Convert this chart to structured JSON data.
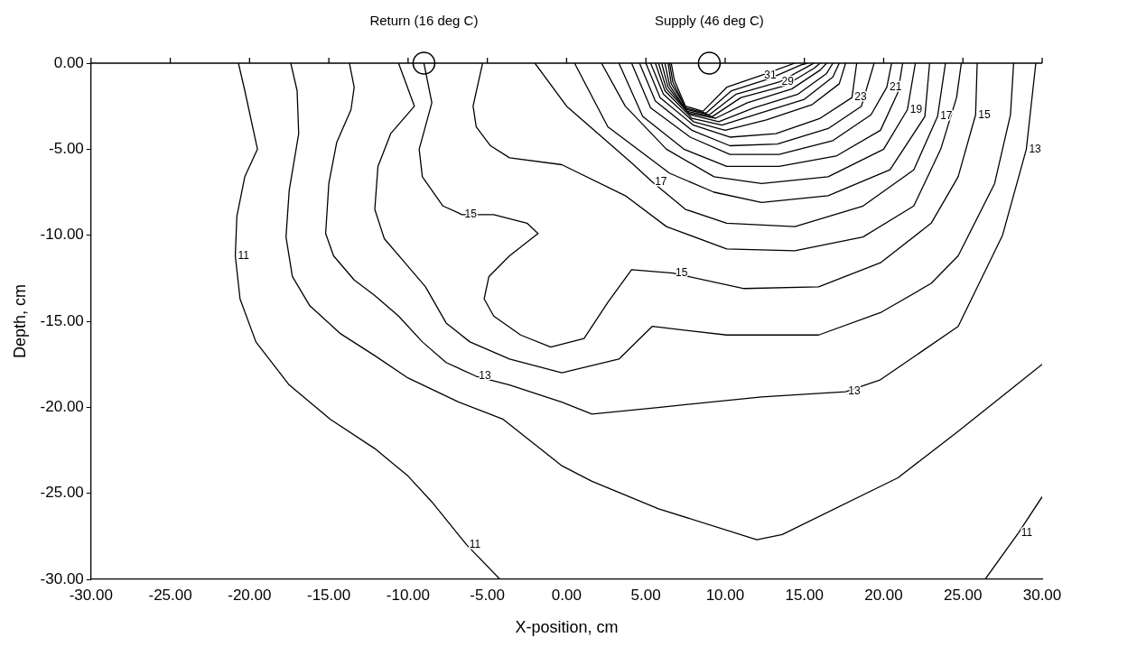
{
  "chart_data": {
    "type": "line",
    "xlabel": "X-position, cm",
    "ylabel": "Depth, cm",
    "xlim": [
      -30,
      30
    ],
    "ylim": [
      -30,
      0
    ],
    "xticks": [
      {
        "value": -30,
        "label": "-30.00"
      },
      {
        "value": -25,
        "label": "-25.00"
      },
      {
        "value": -20,
        "label": "-20.00"
      },
      {
        "value": -15,
        "label": "-15.00"
      },
      {
        "value": -10,
        "label": "-10.00"
      },
      {
        "value": -5,
        "label": "-5.00"
      },
      {
        "value": 0,
        "label": "0.00"
      },
      {
        "value": 5,
        "label": "5.00"
      },
      {
        "value": 10,
        "label": "10.00"
      },
      {
        "value": 15,
        "label": "15.00"
      },
      {
        "value": 20,
        "label": "20.00"
      },
      {
        "value": 25,
        "label": "25.00"
      },
      {
        "value": 30,
        "label": "30.00"
      }
    ],
    "yticks": [
      {
        "value": 0,
        "label": "0.00"
      },
      {
        "value": -5,
        "label": "-5.00"
      },
      {
        "value": -10,
        "label": "-10.00"
      },
      {
        "value": -15,
        "label": "-15.00"
      },
      {
        "value": -20,
        "label": "-20.00"
      },
      {
        "value": -25,
        "label": "-25.00"
      },
      {
        "value": -30,
        "label": "-30.00"
      }
    ],
    "grid": false,
    "legend": false,
    "marker": "none",
    "series": [
      {
        "color": "#000000",
        "x": [
          -20.7,
          -20.3,
          -19.5,
          -20.3,
          -20.8,
          -20.9,
          -20.6,
          -19.6,
          -17.5,
          -14.9,
          -12.1,
          -10.0,
          -8.5,
          -6.3,
          -4.2
        ],
        "values": [
          0,
          -1.6,
          -5.0,
          -6.6,
          -8.9,
          -11.2,
          -13.7,
          -16.2,
          -18.7,
          -20.7,
          -22.4,
          -24.0,
          -25.5,
          -28.0,
          -30
        ]
      },
      {
        "color": "#000000",
        "x": [
          30,
          28.5,
          26.4
        ],
        "values": [
          -25.2,
          -27.3,
          -30
        ]
      },
      {
        "color": "#000000",
        "x": [
          -17.4,
          -17.0,
          -16.9,
          -17.5,
          -17.7,
          -17.3,
          -16.2,
          -14.3,
          -12.1,
          -10.0,
          -6.8,
          -4.0,
          -0.3,
          1.6,
          5.8,
          12.0,
          13.6,
          20.9,
          24.7,
          28.5,
          30
        ],
        "values": [
          0,
          -1.6,
          -4.1,
          -7.4,
          -10.1,
          -12.4,
          -14.1,
          -15.7,
          -17.0,
          -18.3,
          -19.7,
          -20.7,
          -23.4,
          -24.3,
          -25.9,
          -27.7,
          -27.4,
          -24.1,
          -21.4,
          -18.6,
          -17.5
        ]
      },
      {
        "color": "#000000",
        "x": [
          -13.7,
          -13.4,
          -13.6,
          -14.5,
          -15.0,
          -15.2,
          -14.7,
          -13.4,
          -12.1,
          -10.6,
          -9.1,
          -7.6,
          -5.7,
          -3.6,
          -0.3,
          1.6,
          5.9,
          12.3,
          17.6,
          19.8,
          24.7,
          27.5,
          29.0,
          29.6
        ],
        "values": [
          0,
          -1.4,
          -2.7,
          -4.6,
          -7.0,
          -9.9,
          -11.2,
          -12.6,
          -13.5,
          -14.7,
          -16.2,
          -17.4,
          -18.2,
          -18.7,
          -19.7,
          -20.4,
          -20.0,
          -19.4,
          -19.1,
          -18.4,
          -15.3,
          -10.0,
          -5.0,
          0
        ]
      },
      {
        "color": "#000000",
        "x": [
          -10.6,
          -9.6,
          -11.1,
          -11.9,
          -12.1,
          -11.5,
          -10.2,
          -8.9,
          -7.6,
          -6.1,
          -3.6,
          -0.3,
          3.3,
          5.4,
          10.1,
          15.9,
          19.8,
          23.0,
          24.7,
          27.0,
          28.0,
          28.2
        ],
        "values": [
          0,
          -2.5,
          -4.1,
          -6.0,
          -8.5,
          -10.2,
          -11.6,
          -13.0,
          -15.1,
          -16.2,
          -17.2,
          -18.0,
          -17.2,
          -15.3,
          -15.8,
          -15.8,
          -14.5,
          -12.8,
          -11.2,
          -7.0,
          -3.0,
          0
        ]
      },
      {
        "color": "#000000",
        "x": [
          -9.0,
          -8.5,
          -9.3,
          -9.1,
          -7.8,
          -6.6,
          -4.6,
          -2.5,
          -1.8,
          -3.6,
          -4.9,
          -5.2,
          -4.6,
          -2.9,
          -1.0,
          1.1,
          2.6,
          4.1,
          6.7,
          11.2,
          15.9,
          19.8,
          23.0,
          24.7,
          25.8,
          25.9
        ],
        "values": [
          0,
          -2.3,
          -5.0,
          -6.6,
          -8.3,
          -8.8,
          -8.8,
          -9.3,
          -9.9,
          -11.2,
          -12.4,
          -13.7,
          -14.7,
          -15.8,
          -16.5,
          -16.0,
          -13.9,
          -12.0,
          -12.2,
          -13.1,
          -13.0,
          -11.6,
          -9.3,
          -6.6,
          -3.0,
          0
        ]
      },
      {
        "color": "#000000",
        "x": [
          -5.3,
          -5.9,
          -5.7,
          -4.8,
          -3.6,
          -0.3,
          3.7,
          6.3,
          10.1,
          14.4,
          18.7,
          21.9,
          23.6,
          24.6,
          24.9
        ],
        "values": [
          0,
          -2.5,
          -3.7,
          -4.8,
          -5.5,
          -5.9,
          -7.7,
          -9.5,
          -10.8,
          -10.9,
          -10.1,
          -8.3,
          -5.0,
          -2.0,
          0
        ]
      },
      {
        "color": "#000000",
        "x": [
          -2.0,
          0.0,
          4.1,
          5.4,
          7.5,
          10.1,
          14.4,
          18.7,
          21.9,
          23.4,
          23.9
        ],
        "values": [
          0,
          -2.5,
          -5.8,
          -6.9,
          -8.5,
          -9.3,
          -9.5,
          -8.3,
          -6.2,
          -3.1,
          0
        ]
      },
      {
        "color": "#000000",
        "x": [
          0.5,
          2.6,
          6.5,
          9.3,
          12.3,
          16.5,
          20.4,
          22.6,
          22.9
        ],
        "values": [
          0,
          -3.7,
          -6.4,
          -7.5,
          -8.1,
          -7.7,
          -6.2,
          -3.1,
          0
        ]
      },
      {
        "color": "#000000",
        "x": [
          2.2,
          3.7,
          6.3,
          9.3,
          12.3,
          16.5,
          20.0,
          21.5,
          22.0
        ],
        "values": [
          0,
          -2.5,
          -5.0,
          -6.6,
          -7.0,
          -6.6,
          -5.0,
          -2.7,
          0
        ]
      },
      {
        "color": "#000000",
        "x": [
          3.3,
          4.8,
          7.4,
          10.1,
          13.4,
          17.0,
          19.8,
          20.9,
          21.2
        ],
        "values": [
          0,
          -3.1,
          -5.0,
          -6.0,
          -6.0,
          -5.4,
          -3.9,
          -1.7,
          0
        ]
      },
      {
        "color": "#000000",
        "x": [
          4.1,
          5.3,
          7.8,
          10.3,
          13.4,
          16.8,
          19.2,
          20.2,
          20.5
        ],
        "values": [
          0,
          -2.6,
          -4.3,
          -5.3,
          -5.3,
          -4.5,
          -3.0,
          -1.4,
          0
        ]
      },
      {
        "color": "#000000",
        "x": [
          4.6,
          5.6,
          7.9,
          10.3,
          13.3,
          16.5,
          18.6,
          19.4
        ],
        "values": [
          0,
          -2.2,
          -3.9,
          -4.8,
          -4.7,
          -3.8,
          -2.5,
          0
        ]
      },
      {
        "color": "#000000",
        "x": [
          5.0,
          5.9,
          8.0,
          10.3,
          13.2,
          16.0,
          18.0,
          18.3
        ],
        "values": [
          0,
          -2.0,
          -3.6,
          -4.3,
          -4.1,
          -3.2,
          -2.0,
          0
        ]
      },
      {
        "color": "#000000",
        "x": [
          5.3,
          6.1,
          8.0,
          10.0,
          12.6,
          15.5,
          17.2,
          17.6
        ],
        "values": [
          0,
          -1.8,
          -3.4,
          -3.9,
          -3.3,
          -2.4,
          -1.2,
          0
        ]
      },
      {
        "color": "#000000",
        "x": [
          5.6,
          6.2,
          7.9,
          9.8,
          12.2,
          15.0,
          16.8,
          17.2
        ],
        "values": [
          0,
          -1.6,
          -3.2,
          -3.6,
          -2.9,
          -2.1,
          -0.8,
          0
        ]
      },
      {
        "color": "#000000",
        "x": [
          5.8,
          6.3,
          7.8,
          9.6,
          11.8,
          14.6,
          16.4,
          16.8
        ],
        "values": [
          0,
          -1.5,
          -3.0,
          -3.4,
          -2.6,
          -1.8,
          -0.6,
          0
        ]
      },
      {
        "color": "#000000",
        "x": [
          6.0,
          6.4,
          7.7,
          9.4,
          11.4,
          14.2,
          16.0,
          16.4
        ],
        "values": [
          0,
          -1.4,
          -2.9,
          -3.2,
          -2.3,
          -1.5,
          -0.4,
          0
        ]
      },
      {
        "color": "#000000",
        "x": [
          6.2,
          6.5,
          7.6,
          9.2,
          11.0,
          13.8,
          15.6,
          16.0
        ],
        "values": [
          0,
          -1.3,
          -2.8,
          -3.1,
          -2.0,
          -1.3,
          -0.3,
          0
        ]
      },
      {
        "color": "#000000",
        "x": [
          6.4,
          6.6,
          7.6,
          9.0,
          10.7,
          13.4,
          15.2,
          15.6
        ],
        "values": [
          0,
          -1.2,
          -2.7,
          -3.0,
          -1.8,
          -1.1,
          -0.2,
          0
        ]
      },
      {
        "color": "#000000",
        "x": [
          6.5,
          6.7,
          7.5,
          8.8,
          10.4,
          12.8,
          14.8,
          15.2
        ],
        "values": [
          0,
          -1.1,
          -2.6,
          -2.9,
          -1.6,
          -0.9,
          -0.1,
          0
        ]
      },
      {
        "color": "#000000",
        "x": [
          6.6,
          6.8,
          7.5,
          8.6,
          10.1,
          12.3,
          14.4
        ],
        "values": [
          0,
          -1.0,
          -2.5,
          -2.8,
          -1.4,
          -0.7,
          0
        ]
      },
      {
        "type": "scatter",
        "marker": "circle",
        "color": "#000000",
        "x": [
          -9,
          9
        ],
        "values": [
          0,
          0
        ]
      }
    ],
    "annotations": [
      {
        "text": "Return (16 deg C)",
        "x": -9,
        "y": 0
      },
      {
        "text": "Supply (46 deg C)",
        "x": 9,
        "y": 0
      },
      {
        "text": "11",
        "x": -20.9,
        "y": -11.2
      },
      {
        "text": "11",
        "x": -6.3,
        "y": -28.0
      },
      {
        "text": "11",
        "x": 28.5,
        "y": -27.3
      },
      {
        "text": "13",
        "x": -5.7,
        "y": -18.2
      },
      {
        "text": "13",
        "x": 17.6,
        "y": -19.1
      },
      {
        "text": "13",
        "x": 29.0,
        "y": -5.0
      },
      {
        "text": "15",
        "x": -6.6,
        "y": -8.8
      },
      {
        "text": "15",
        "x": 6.7,
        "y": -12.2
      },
      {
        "text": "15",
        "x": 25.8,
        "y": -3.0
      },
      {
        "text": "17",
        "x": 5.4,
        "y": -6.9
      },
      {
        "text": "17",
        "x": 23.4,
        "y": -3.1
      },
      {
        "text": "19",
        "x": 21.5,
        "y": -2.7
      },
      {
        "text": "21",
        "x": 20.2,
        "y": -1.4
      },
      {
        "text": "23",
        "x": 18.0,
        "y": -2.0
      },
      {
        "text": "29",
        "x": 13.4,
        "y": -1.1
      },
      {
        "text": "31",
        "x": 12.3,
        "y": -0.7
      }
    ]
  }
}
